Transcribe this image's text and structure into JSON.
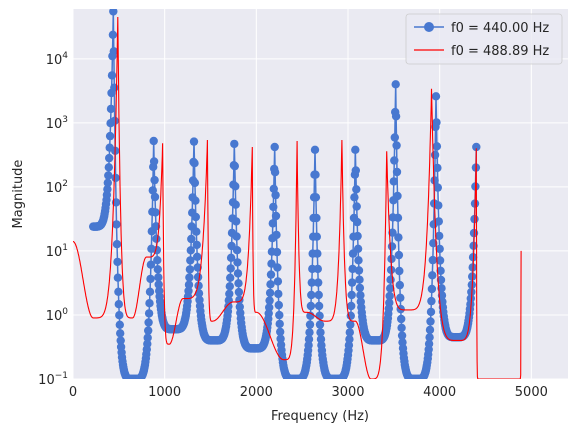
{
  "chart_data": {
    "type": "line",
    "xlabel": "Frequency (Hz)",
    "ylabel": "Magnitude",
    "xlim": [
      0,
      5400
    ],
    "ylim": [
      0.1,
      60000
    ],
    "yscale": "log",
    "grid": true,
    "legend_position": "top-right",
    "x_ticks": [
      "0",
      "1000",
      "2000",
      "3000",
      "4000",
      "5000"
    ],
    "x_tick_values": [
      0,
      1000,
      2000,
      3000,
      4000,
      5000
    ],
    "y_ticks": [
      "10^-1",
      "10^0",
      "10^1",
      "10^2",
      "10^3",
      "10^4"
    ],
    "y_tick_values": [
      0.1,
      1,
      10,
      100,
      1000,
      10000
    ],
    "colors": {
      "series1": "#4878d0",
      "series2": "#ff0000",
      "background": "#eaeaf2",
      "grid": "#ffffff"
    },
    "series": [
      {
        "name": "f0 = 440.00 Hz",
        "style": "line-with-circle-markers",
        "peaks": [
          {
            "x": 440,
            "y": 55000
          },
          {
            "x": 880,
            "y": 520
          },
          {
            "x": 1320,
            "y": 510
          },
          {
            "x": 1760,
            "y": 470
          },
          {
            "x": 2200,
            "y": 420
          },
          {
            "x": 2640,
            "y": 380
          },
          {
            "x": 3080,
            "y": 380
          },
          {
            "x": 3520,
            "y": 4000
          },
          {
            "x": 3960,
            "y": 2600
          },
          {
            "x": 4400,
            "y": 420
          }
        ],
        "valleys": [
          {
            "x": 220,
            "y": 24
          },
          {
            "x": 660,
            "y": 0.1
          },
          {
            "x": 1100,
            "y": 0.6
          },
          {
            "x": 1540,
            "y": 0.4
          },
          {
            "x": 1980,
            "y": 0.3
          },
          {
            "x": 2420,
            "y": 0.1
          },
          {
            "x": 2860,
            "y": 0.1
          },
          {
            "x": 3300,
            "y": 0.4
          },
          {
            "x": 3740,
            "y": 0.1
          },
          {
            "x": 4180,
            "y": 0.45
          }
        ]
      },
      {
        "name": "f0 = 488.89 Hz",
        "style": "line",
        "peaks": [
          {
            "x": 488.89,
            "y": 45000
          },
          {
            "x": 977.78,
            "y": 480
          },
          {
            "x": 1466.67,
            "y": 540
          },
          {
            "x": 1955.56,
            "y": 420
          },
          {
            "x": 2444.44,
            "y": 520
          },
          {
            "x": 2933.33,
            "y": 540
          },
          {
            "x": 3422.22,
            "y": 360
          },
          {
            "x": 3911.11,
            "y": 3400
          },
          {
            "x": 4400,
            "y": 400
          },
          {
            "x": 4888.89,
            "y": 10
          }
        ],
        "valleys": [
          {
            "x": 0,
            "y": 14
          },
          {
            "x": 220,
            "y": 0.9
          },
          {
            "x": 650,
            "y": 0.9
          },
          {
            "x": 800,
            "y": 8
          },
          {
            "x": 1050,
            "y": 0.35
          },
          {
            "x": 1200,
            "y": 1.8
          },
          {
            "x": 1520,
            "y": 0.8
          },
          {
            "x": 1750,
            "y": 1.6
          },
          {
            "x": 2000,
            "y": 1.1
          },
          {
            "x": 2300,
            "y": 0.2
          },
          {
            "x": 2550,
            "y": 1.1
          },
          {
            "x": 2750,
            "y": 0.8
          },
          {
            "x": 3080,
            "y": 0.8
          },
          {
            "x": 3250,
            "y": 0.1
          },
          {
            "x": 3650,
            "y": 1.2
          },
          {
            "x": 4200,
            "y": 0.4
          },
          {
            "x": 4420,
            "y": 0.1
          },
          {
            "x": 4880,
            "y": 0.1
          }
        ]
      }
    ]
  }
}
